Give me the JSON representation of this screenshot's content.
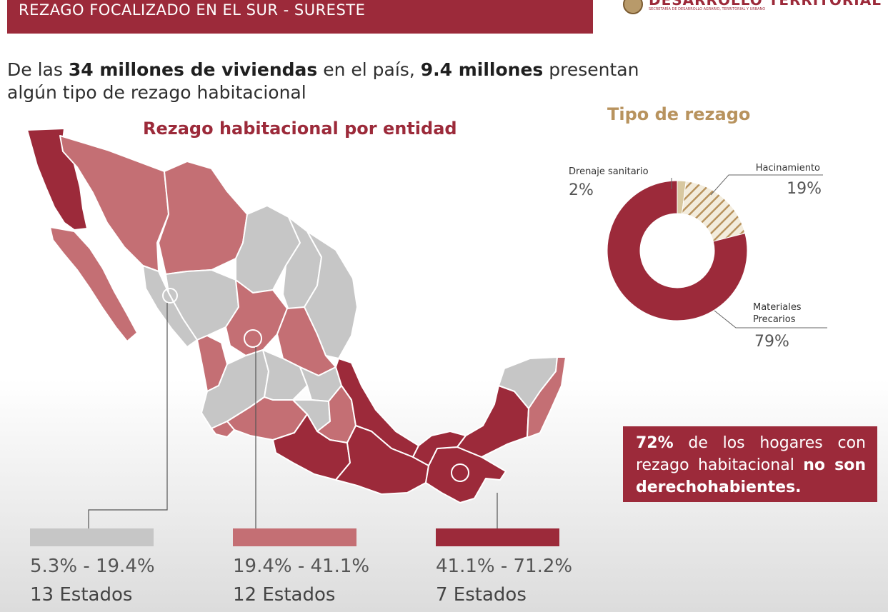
{
  "header": {
    "banner_title": "REZAGO FOCALIZADO EN EL SUR - SURESTE",
    "logo_title": "DESARROLLO TERRITORIAL",
    "logo_subtitle": "SECRETARÍA DE DESARROLLO AGRARIO, TERRITORIAL Y URBANO"
  },
  "intro": {
    "p1": "De las ",
    "b1": "34 millones de viviendas",
    "p2": " en el país, ",
    "b2": "9.4 millones",
    "p3": " presentan algún tipo de rezago habitacional"
  },
  "map": {
    "title": "Rezago habitacional por entidad"
  },
  "colors": {
    "low": "#c6c6c6",
    "mid": "#c46f74",
    "high": "#9c2a3a",
    "accent_gold": "#b8935e",
    "brand": "#9c2a3a"
  },
  "legend": [
    {
      "range": "5.3% - 19.4%",
      "count": "13 Estados",
      "color": "#c6c6c6"
    },
    {
      "range": "19.4% - 41.1%",
      "count": "12 Estados",
      "color": "#c46f74"
    },
    {
      "range": "41.1% - 71.2%",
      "count": "7 Estados",
      "color": "#9c2a3a"
    }
  ],
  "chart_data": {
    "type": "pie",
    "title": "Tipo de rezago",
    "slices": [
      {
        "label": "Drenaje sanitario",
        "value": 2,
        "display": "2%",
        "color": "#d8c8a0"
      },
      {
        "label": "Hacinamiento",
        "value": 19,
        "display": "19%",
        "color": "#b8935e",
        "pattern": "hatched"
      },
      {
        "label": "Materiales Precarios",
        "value": 79,
        "display": "79%",
        "color": "#9c2a3a"
      }
    ]
  },
  "callout": {
    "b1": "72%",
    "t1": " de los hogares con rezago habitacional ",
    "b2": "no son derechohabientes."
  }
}
